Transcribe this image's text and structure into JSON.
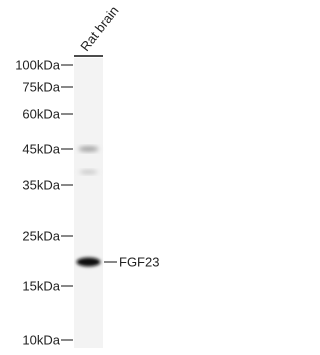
{
  "lane_label": "Rat brain",
  "markers": [
    "100kDa",
    "75kDa",
    "60kDa",
    "45kDa",
    "35kDa",
    "25kDa",
    "15kDa",
    "10kDa"
  ],
  "band_label": "FGF23"
}
